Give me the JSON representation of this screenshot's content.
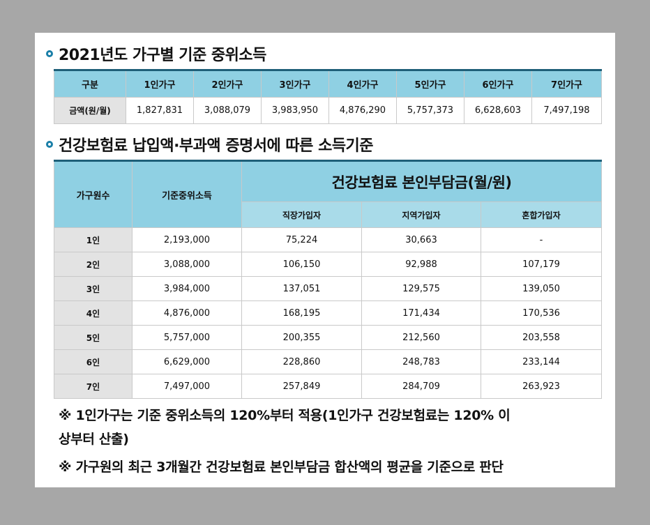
{
  "section1": {
    "title": "2021년도 가구별 기준 중위소득",
    "header": [
      "구분",
      "1인가구",
      "2인가구",
      "3인가구",
      "4인가구",
      "5인가구",
      "6인가구",
      "7인가구"
    ],
    "row": [
      "금액(원/월)",
      "1,827,831",
      "3,088,079",
      "3,983,950",
      "4,876,290",
      "5,757,373",
      "6,628,603",
      "7,497,198"
    ]
  },
  "section2": {
    "title": "건강보험료 납입액·부과액 증명서에 따른 소득기준",
    "col_household": "가구원수",
    "col_income": "기준중위소득",
    "col_premium": "건강보험료 본인부담금(월/원)",
    "sub_headers": [
      "직장가입자",
      "지역가입자",
      "혼합가입자"
    ],
    "rows": [
      [
        "1인",
        "2,193,000",
        "75,224",
        "30,663",
        "-"
      ],
      [
        "2인",
        "3,088,000",
        "106,150",
        "92,988",
        "107,179"
      ],
      [
        "3인",
        "3,984,000",
        "137,051",
        "129,575",
        "139,050"
      ],
      [
        "4인",
        "4,876,000",
        "168,195",
        "171,434",
        "170,536"
      ],
      [
        "5인",
        "5,757,000",
        "200,355",
        "212,560",
        "203,558"
      ],
      [
        "6인",
        "6,629,000",
        "228,860",
        "248,783",
        "233,144"
      ],
      [
        "7인",
        "7,497,000",
        "257,849",
        "284,709",
        "263,923"
      ]
    ]
  },
  "notes": {
    "note1_line1": "※ 1인가구는 기준 중위소득의 120%부터 적용(1인가구 건강보험료는 120% 이",
    "note1_line2": "상부터 산출)",
    "note2": "※ 가구원의 최근 3개월간 건강보험료 본인부담금 합산액의 평균을 기준으로 판단"
  },
  "colors": {
    "header_blue": "#8fd0e3",
    "rule_dark": "#1e5f78",
    "label_gray": "#e3e3e3"
  }
}
